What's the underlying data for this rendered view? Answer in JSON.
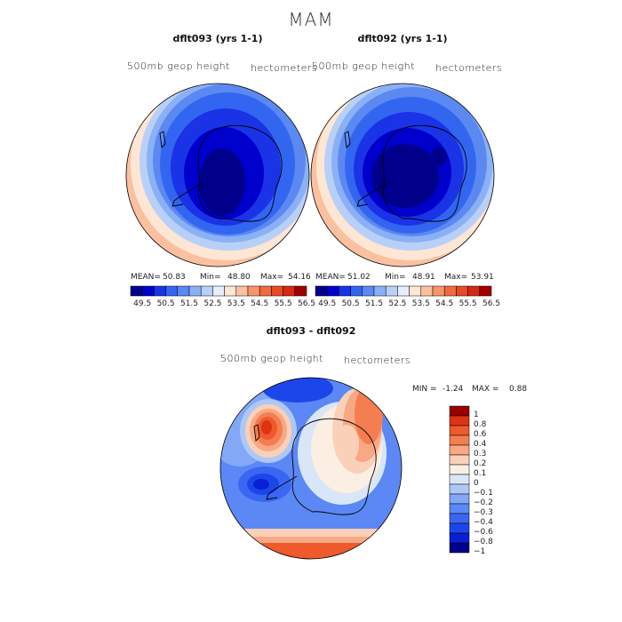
{
  "page_title": "MAM",
  "palette": [
    "#00008b",
    "#0000cd",
    "#1a33e6",
    "#3366f0",
    "#5c88f2",
    "#8ab0f5",
    "#b8d0f7",
    "#e6eef9",
    "#fde6d4",
    "#fbc0a0",
    "#f7956a",
    "#f06a42",
    "#e84a26",
    "#d42a12",
    "#a00000"
  ],
  "diff_palette": [
    "#00008b",
    "#0a1ed6",
    "#1c46ea",
    "#3a66f2",
    "#5c88f5",
    "#82a8f6",
    "#adc8f7",
    "#d9e6f8",
    "#fbeee2",
    "#fbd0b8",
    "#f8a884",
    "#f47e52",
    "#ee5a2c",
    "#dd3414",
    "#9b0000"
  ],
  "chart_data": [
    {
      "type": "heatmap",
      "title": "dflt093 (yrs 1-1)",
      "variable_label": "500mb geop height",
      "units_label": "hectometers",
      "mean_label": "MEAN=",
      "mean": "50.83",
      "min_label": "Min=",
      "min": "48.80",
      "max_label": "Max=",
      "max": "54.16",
      "colorbar_ticks": [
        "49.5",
        "50.5",
        "51.5",
        "52.5",
        "53.5",
        "54.5",
        "55.5",
        "56.5"
      ]
    },
    {
      "type": "heatmap",
      "title": "dflt092 (yrs 1-1)",
      "variable_label": "500mb geop height",
      "units_label": "hectometers",
      "mean_label": "MEAN=",
      "mean": "51.02",
      "min_label": "Min=",
      "min": "48.91",
      "max_label": "Max=",
      "max": "53.91",
      "colorbar_ticks": [
        "49.5",
        "50.5",
        "51.5",
        "52.5",
        "53.5",
        "54.5",
        "55.5",
        "56.5"
      ]
    },
    {
      "type": "heatmap",
      "title": "dflt093 - dflt092",
      "variable_label": "500mb geop height",
      "units_label": "hectometers",
      "min_label": "MIN =",
      "min": "-1.24",
      "max_label": "MAX =",
      "max": "0.88",
      "colorbar_ticks": [
        "1",
        "0.8",
        "0.6",
        "0.4",
        "0.3",
        "0.2",
        "0.1",
        "0",
        "−0.1",
        "−0.2",
        "−0.3",
        "−0.4",
        "−0.6",
        "−0.8",
        "−1"
      ]
    }
  ]
}
